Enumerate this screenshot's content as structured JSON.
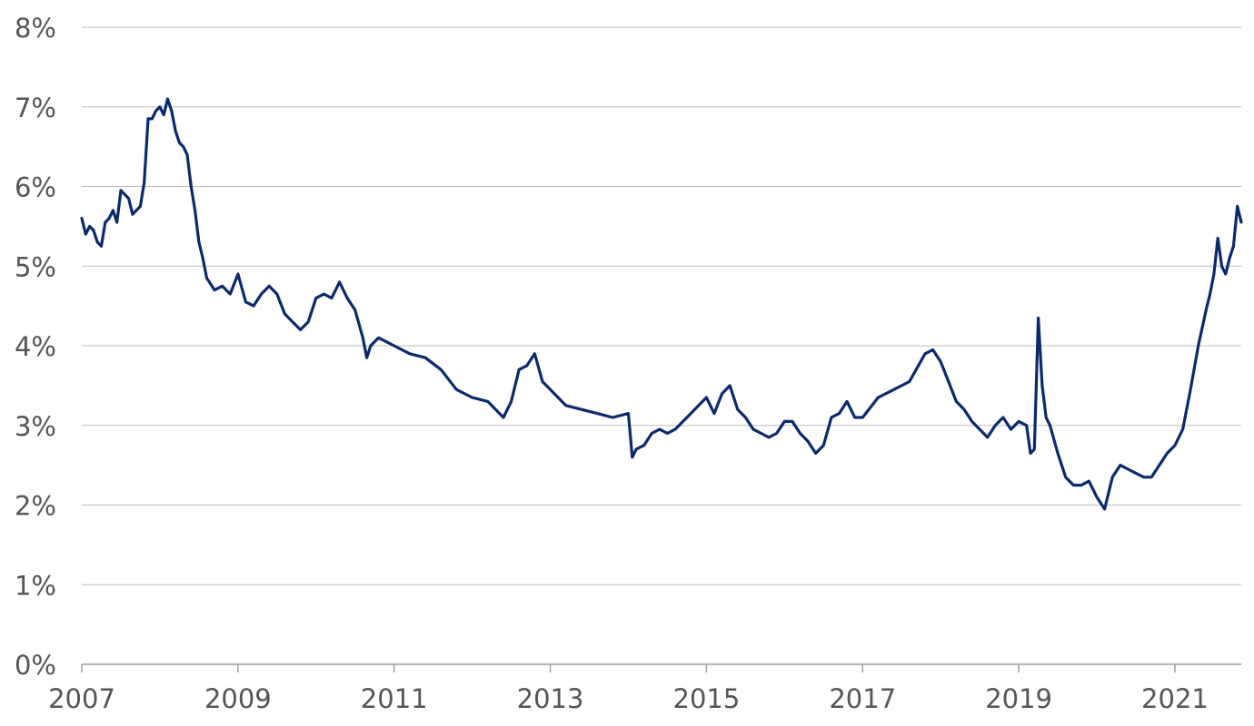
{
  "chart_data": {
    "type": "line",
    "title": "",
    "xlabel": "",
    "ylabel": "",
    "xlim": [
      2007.0,
      2021.85
    ],
    "ylim": [
      0,
      8
    ],
    "x_ticks": [
      2007,
      2009,
      2011,
      2013,
      2015,
      2017,
      2019,
      2021
    ],
    "x_tick_labels": [
      "2007",
      "2009",
      "2011",
      "2013",
      "2015",
      "2017",
      "2019",
      "2021"
    ],
    "y_ticks": [
      0,
      1,
      2,
      3,
      4,
      5,
      6,
      7,
      8
    ],
    "y_tick_labels": [
      "0%",
      "1%",
      "2%",
      "3%",
      "4%",
      "5%",
      "6%",
      "7%",
      "8%"
    ],
    "grid": "horizontal",
    "legend": "none",
    "colors": {
      "line": "#0b2a6b",
      "grid": "#bdbdbd",
      "axis": "#9e9e9e",
      "text": "#555555"
    },
    "series": [
      {
        "x": [
          2007.0,
          2007.05,
          2007.1,
          2007.15,
          2007.2,
          2007.25,
          2007.3,
          2007.35,
          2007.4,
          2007.45,
          2007.5,
          2007.55,
          2007.6,
          2007.65,
          2007.7,
          2007.75,
          2007.8,
          2007.85,
          2007.9,
          2007.95,
          2008.0,
          2008.05,
          2008.1,
          2008.15,
          2008.2,
          2008.25,
          2008.3,
          2008.35,
          2008.4,
          2008.45,
          2008.5,
          2008.55,
          2008.6,
          2008.7,
          2008.8,
          2008.9,
          2009.0,
          2009.1,
          2009.2,
          2009.3,
          2009.4,
          2009.5,
          2009.6,
          2009.7,
          2009.8,
          2009.9,
          2010.0,
          2010.1,
          2010.2,
          2010.3,
          2010.4,
          2010.5,
          2010.6,
          2010.65,
          2010.7,
          2010.8,
          2010.9,
          2011.0,
          2011.2,
          2011.4,
          2011.6,
          2011.8,
          2012.0,
          2012.2,
          2012.4,
          2012.5,
          2012.6,
          2012.7,
          2012.8,
          2012.9,
          2013.0,
          2013.2,
          2013.4,
          2013.6,
          2013.8,
          2014.0,
          2014.05,
          2014.1,
          2014.2,
          2014.3,
          2014.4,
          2014.5,
          2014.6,
          2014.8,
          2015.0,
          2015.1,
          2015.2,
          2015.3,
          2015.4,
          2015.5,
          2015.6,
          2015.7,
          2015.8,
          2015.9,
          2016.0,
          2016.1,
          2016.2,
          2016.3,
          2016.4,
          2016.5,
          2016.6,
          2016.7,
          2016.8,
          2016.9,
          2017.0,
          2017.2,
          2017.4,
          2017.6,
          2017.8,
          2017.9,
          2018.0,
          2018.1,
          2018.2,
          2018.3,
          2018.4,
          2018.5,
          2018.6,
          2018.7,
          2018.8,
          2018.9,
          2019.0,
          2019.1,
          2019.15,
          2019.2,
          2019.25,
          2019.3,
          2019.35,
          2019.4,
          2019.5,
          2019.6,
          2019.7,
          2019.8,
          2019.9,
          2020.0,
          2020.1,
          2020.2,
          2020.3,
          2020.4,
          2020.5,
          2020.6,
          2020.7,
          2020.8,
          2020.9,
          2021.0,
          2021.1,
          2021.2,
          2021.3,
          2021.4,
          2021.45,
          2021.5,
          2021.55,
          2021.6,
          2021.65,
          2021.7,
          2021.75,
          2021.8,
          2021.85
        ],
        "values": [
          5.6,
          5.4,
          5.5,
          5.45,
          5.3,
          5.25,
          5.55,
          5.6,
          5.7,
          5.55,
          5.95,
          5.9,
          5.85,
          5.65,
          5.7,
          5.75,
          6.05,
          6.85,
          6.85,
          6.95,
          7.0,
          6.9,
          7.1,
          6.95,
          6.7,
          6.55,
          6.5,
          6.4,
          6.0,
          5.7,
          5.3,
          5.1,
          4.85,
          4.7,
          4.75,
          4.65,
          4.9,
          4.55,
          4.5,
          4.65,
          4.75,
          4.65,
          4.4,
          4.3,
          4.2,
          4.3,
          4.6,
          4.65,
          4.6,
          4.8,
          4.6,
          4.45,
          4.1,
          3.85,
          4.0,
          4.1,
          4.05,
          4.0,
          3.9,
          3.85,
          3.7,
          3.45,
          3.35,
          3.3,
          3.1,
          3.3,
          3.7,
          3.75,
          3.9,
          3.55,
          3.45,
          3.25,
          3.2,
          3.15,
          3.1,
          3.15,
          2.6,
          2.7,
          2.75,
          2.9,
          2.95,
          2.9,
          2.95,
          3.15,
          3.35,
          3.15,
          3.4,
          3.5,
          3.2,
          3.1,
          2.95,
          2.9,
          2.85,
          2.9,
          3.05,
          3.05,
          2.9,
          2.8,
          2.65,
          2.75,
          3.1,
          3.15,
          3.3,
          3.1,
          3.1,
          3.35,
          3.45,
          3.55,
          3.9,
          3.95,
          3.8,
          3.55,
          3.3,
          3.2,
          3.05,
          2.95,
          2.85,
          3.0,
          3.1,
          2.95,
          3.05,
          3.0,
          2.65,
          2.7,
          4.35,
          3.5,
          3.1,
          3.0,
          2.65,
          2.35,
          2.25,
          2.25,
          2.3,
          2.1,
          1.95,
          2.35,
          2.5,
          2.45,
          2.4,
          2.35,
          2.35,
          2.5,
          2.65,
          2.75,
          2.95,
          3.45,
          4.0,
          4.45,
          4.65,
          4.9,
          5.35,
          5.0,
          4.9,
          5.1,
          5.25,
          5.75,
          5.55
        ]
      }
    ]
  }
}
